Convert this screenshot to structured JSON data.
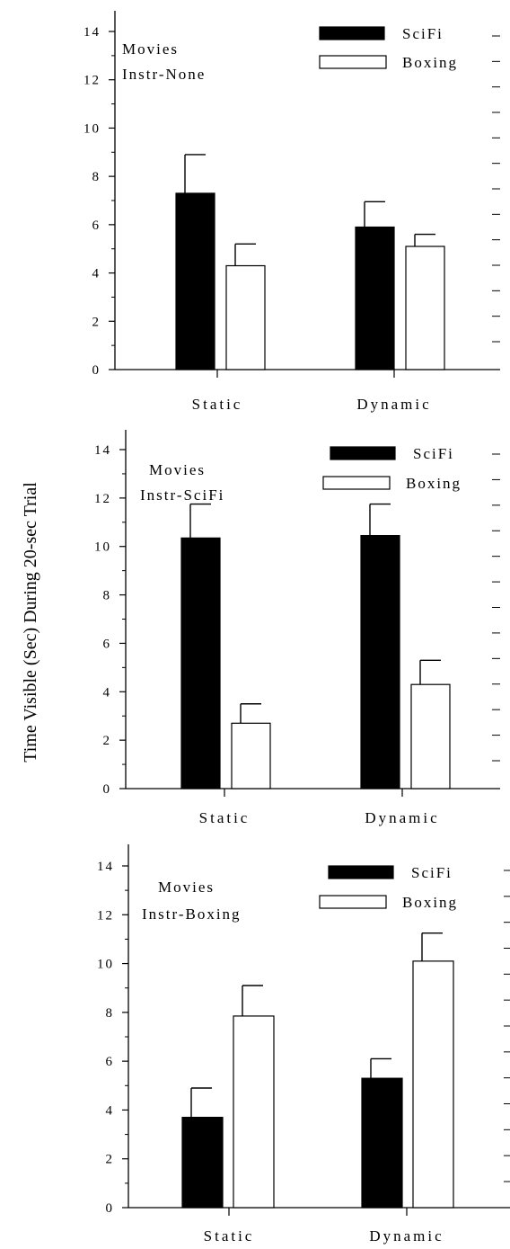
{
  "figure": {
    "ylabel": "Time Visible (Sec) During 20-sec Trial"
  },
  "chart_data": [
    {
      "type": "bar",
      "categories": [
        "Static",
        "Dynamic"
      ],
      "series": [
        {
          "name": "SciFi",
          "values": [
            7.3,
            5.9
          ],
          "errors": [
            1.6,
            1.05
          ],
          "color": "#000000"
        },
        {
          "name": "Boxing",
          "values": [
            4.3,
            5.1
          ],
          "errors": [
            0.9,
            0.5
          ],
          "color": "#ffffff"
        }
      ],
      "annotation": [
        "Movies",
        "Instr-None"
      ],
      "ylim": [
        0,
        14
      ],
      "yticks": [
        0,
        2,
        4,
        6,
        8,
        10,
        12,
        14
      ],
      "legend": "top-right"
    },
    {
      "type": "bar",
      "categories": [
        "Static",
        "Dynamic"
      ],
      "series": [
        {
          "name": "SciFi",
          "values": [
            10.35,
            10.45
          ],
          "errors": [
            1.4,
            1.3
          ],
          "color": "#000000"
        },
        {
          "name": "Boxing",
          "values": [
            2.7,
            4.3
          ],
          "errors": [
            0.8,
            1.0
          ],
          "color": "#ffffff"
        }
      ],
      "annotation": [
        "Movies",
        "Instr-SciFi"
      ],
      "ylim": [
        0,
        14
      ],
      "yticks": [
        0,
        2,
        4,
        6,
        8,
        10,
        12,
        14
      ],
      "legend": "top-right"
    },
    {
      "type": "bar",
      "categories": [
        "Static",
        "Dynamic"
      ],
      "series": [
        {
          "name": "SciFi",
          "values": [
            3.7,
            5.3
          ],
          "errors": [
            1.2,
            0.8
          ],
          "color": "#000000"
        },
        {
          "name": "Boxing",
          "values": [
            7.85,
            10.1
          ],
          "errors": [
            1.25,
            1.15
          ],
          "color": "#ffffff"
        }
      ],
      "annotation": [
        "Movies",
        "Instr-Boxing"
      ],
      "ylim": [
        0,
        14
      ],
      "yticks": [
        0,
        2,
        4,
        6,
        8,
        10,
        12,
        14
      ],
      "legend": "top-right"
    }
  ]
}
